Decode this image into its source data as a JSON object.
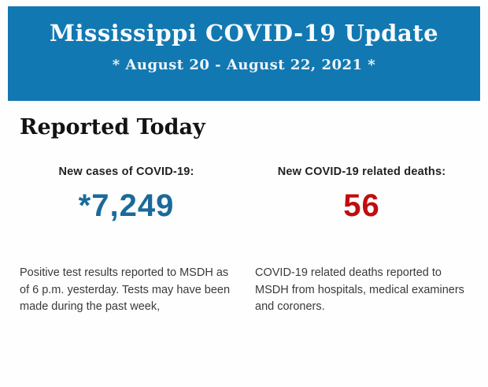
{
  "header": {
    "title": "Mississippi COVID-19 Update",
    "subtitle": "* August 20 - August 22, 2021 *"
  },
  "section": {
    "heading": "Reported Today"
  },
  "stats": {
    "cases": {
      "label": "New cases of COVID-19:",
      "value": "*7,249",
      "note": "Positive test results reported to MSDH as of 6 p.m. yesterday. Tests may have been made during the past week,"
    },
    "deaths": {
      "label": "New COVID-19 related deaths:",
      "value": "56",
      "note": "COVID-19 related deaths reported to MSDH from hospitals, medical examiners and coroners."
    }
  },
  "colors": {
    "header_background": "#1278b2",
    "header_text": "#f6fafc",
    "cases_value": "#1a6a9a",
    "deaths_value": "#c00d0e",
    "body_text": "#3a3a3a"
  }
}
